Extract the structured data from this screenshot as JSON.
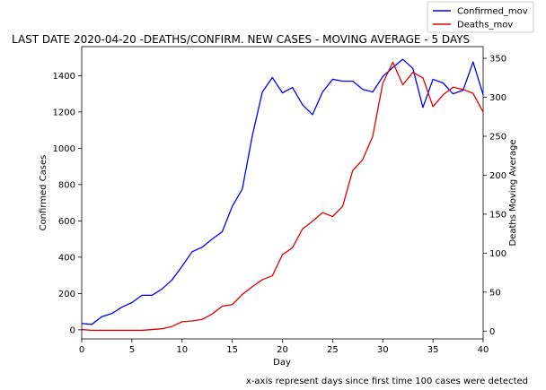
{
  "chart_data": {
    "type": "line",
    "title": "LAST DATE 2020-04-20  -DEATHS/CONFIRM. NEW CASES - MOVING AVERAGE - 5 DAYS",
    "xlabel": "Day",
    "ylabel_left": "Confirmed Cases",
    "ylabel_right": "Deaths Moving Average",
    "footnote": "x-axis represent days since first time 100 cases were detected",
    "xlim": [
      0,
      40
    ],
    "ylim_left": [
      -50,
      1560
    ],
    "ylim_right": [
      -10,
      365
    ],
    "x_ticks": [
      0,
      5,
      10,
      15,
      20,
      25,
      30,
      35,
      40
    ],
    "y_ticks_left": [
      0,
      200,
      400,
      600,
      800,
      1000,
      1200,
      1400
    ],
    "y_ticks_right": [
      0,
      50,
      100,
      150,
      200,
      250,
      300,
      350
    ],
    "legend_position": "top-right",
    "x": [
      0,
      1,
      2,
      3,
      4,
      5,
      6,
      7,
      8,
      9,
      10,
      11,
      12,
      13,
      14,
      15,
      16,
      17,
      18,
      19,
      20,
      21,
      22,
      23,
      24,
      25,
      26,
      27,
      28,
      29,
      30,
      31,
      32,
      33,
      34,
      35,
      36,
      37,
      38,
      39,
      40
    ],
    "series": [
      {
        "name": "Confirmed_mov",
        "axis": "left",
        "color": "#0000ff",
        "values": [
          35,
          30,
          72,
          90,
          125,
          150,
          190,
          190,
          225,
          275,
          350,
          430,
          455,
          500,
          540,
          680,
          775,
          1070,
          1310,
          1390,
          1305,
          1335,
          1240,
          1185,
          1310,
          1380,
          1370,
          1370,
          1325,
          1310,
          1395,
          1445,
          1490,
          1440,
          1225,
          1380,
          1360,
          1300,
          1320,
          1475,
          1295
        ]
      },
      {
        "name": "Deaths_mov",
        "axis": "right",
        "color": "#dd0000",
        "values": [
          2,
          1,
          1,
          1,
          1,
          1,
          1,
          2,
          3,
          6,
          12,
          13,
          15,
          22,
          32,
          34,
          47,
          57,
          66,
          71,
          98,
          107,
          131,
          141,
          152,
          147,
          160,
          206,
          220,
          250,
          318,
          345,
          316,
          332,
          325,
          288,
          303,
          313,
          310,
          305,
          281
        ]
      }
    ]
  }
}
